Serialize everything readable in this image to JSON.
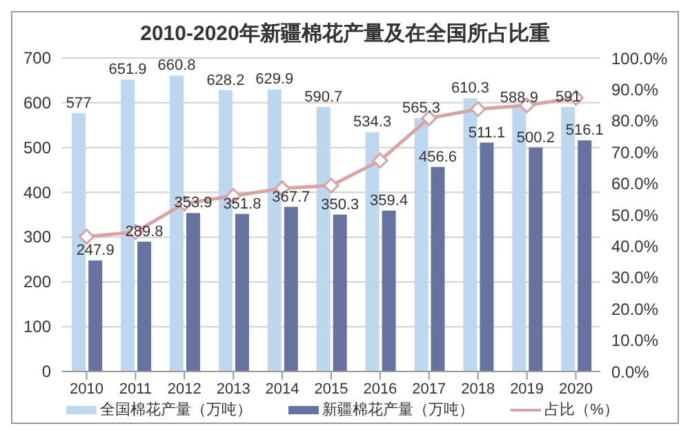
{
  "chart_data": {
    "type": "bar",
    "title": "2010-2020年新疆棉花产量及在全国所占比重",
    "categories": [
      "2010",
      "2011",
      "2012",
      "2013",
      "2014",
      "2015",
      "2016",
      "2017",
      "2018",
      "2019",
      "2020"
    ],
    "series": [
      {
        "name": "全国棉花产量（万吨）",
        "color": "#bdd7ee",
        "values": [
          577,
          651.9,
          660.8,
          628.2,
          629.9,
          590.7,
          534.3,
          565.3,
          610.3,
          588.9,
          591
        ],
        "value_labels": [
          "577",
          "651.9",
          "660.8",
          "628.2",
          "629.9",
          "590.7",
          "534.3",
          "565.3",
          "610.3",
          "588.9",
          "591"
        ]
      },
      {
        "name": "新疆棉花产量（万吨）",
        "color": "#6673a0",
        "values": [
          247.9,
          289.8,
          353.9,
          351.8,
          367.7,
          350.3,
          359.4,
          456.6,
          511.1,
          500.2,
          516.1
        ],
        "value_labels": [
          "247.9",
          "289.8",
          "353.9",
          "351.8",
          "367.7",
          "350.3",
          "359.4",
          "456.6",
          "511.1",
          "500.2",
          "516.1"
        ]
      },
      {
        "name": "占比（%）",
        "type": "line",
        "axis": "y2",
        "color": "#d9a3a3",
        "marker": "diamond",
        "values": [
          43,
          44.5,
          53.6,
          56,
          58.4,
          59.3,
          67.3,
          80.8,
          83.7,
          84.9,
          87.3
        ]
      }
    ],
    "ylim": [
      0,
      700
    ],
    "yticks": [
      0,
      100,
      200,
      300,
      400,
      500,
      600,
      700
    ],
    "y2lim": [
      0,
      100
    ],
    "y2ticks": [
      {
        "value": 0,
        "label": "0.0%"
      },
      {
        "value": 10,
        "label": "10.0%"
      },
      {
        "value": 20,
        "label": "20.0%"
      },
      {
        "value": 30,
        "label": "30.0%"
      },
      {
        "value": 40,
        "label": "40.0%"
      },
      {
        "value": 50,
        "label": "50.0%"
      },
      {
        "value": 60,
        "label": "60.0%"
      },
      {
        "value": 70,
        "label": "70.0%"
      },
      {
        "value": 80,
        "label": "80.0%"
      },
      {
        "value": 90,
        "label": "90.0%"
      },
      {
        "value": 100,
        "label": "100.0%"
      }
    ],
    "grid": "y",
    "legend": "bottom"
  }
}
